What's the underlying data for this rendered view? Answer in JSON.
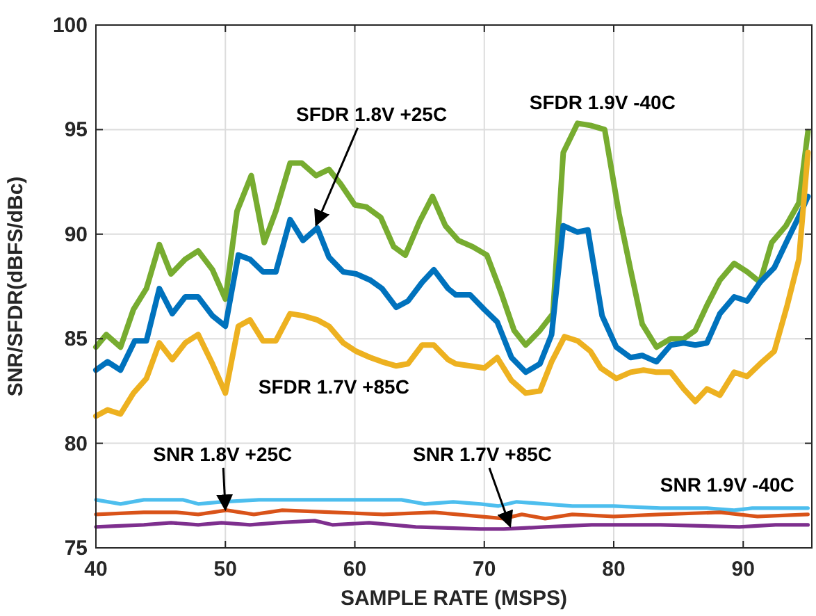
{
  "chart_data": {
    "type": "line",
    "xlabel": "SAMPLE RATE (MSPS)",
    "ylabel": "SNR/SFDR(dBFS/dBc)",
    "xlim": [
      40,
      95.3
    ],
    "ylim": [
      75,
      100
    ],
    "xticks": [
      40,
      50,
      60,
      70,
      80,
      90
    ],
    "yticks": [
      75,
      80,
      85,
      90,
      95,
      100
    ],
    "grid": true,
    "marker": "none",
    "line_style": "solid",
    "series": [
      {
        "color": "#77ac30",
        "x": [
          40,
          40.8,
          41.9,
          42.9,
          43.9,
          44.9,
          45.8,
          46.9,
          47.9,
          49,
          50,
          50.9,
          52,
          53,
          53.9,
          55,
          55.9,
          57,
          58,
          58.9,
          60,
          60.9,
          62,
          63,
          63.9,
          65,
          66,
          67,
          68,
          69.1,
          70.2,
          71.3,
          72.3,
          73.2,
          74.3,
          75.3,
          76.1,
          77.2,
          78.2,
          79.3,
          80.4,
          81.3,
          82.2,
          83.3,
          84.4,
          85.4,
          86.3,
          87.2,
          88.2,
          89.3,
          90.3,
          91.3,
          92.2,
          93.3,
          94.3,
          95
        ],
        "values": [
          84.6,
          85.2,
          84.6,
          86.4,
          87.4,
          89.5,
          88.1,
          88.8,
          89.2,
          88.3,
          86.9,
          91.1,
          92.8,
          89.6,
          91.1,
          93.4,
          93.4,
          92.8,
          93.1,
          92.4,
          91.4,
          91.3,
          90.8,
          89.4,
          89,
          90.6,
          91.8,
          90.4,
          89.7,
          89.4,
          89,
          87.2,
          85.4,
          84.7,
          85.4,
          86.2,
          93.9,
          95.3,
          95.2,
          95,
          91,
          88.3,
          85.7,
          84.6,
          85,
          85,
          85.4,
          86.6,
          87.8,
          88.6,
          88.2,
          87.7,
          89.6,
          90.4,
          91.5,
          94.9
        ]
      },
      {
        "color": "#0072bd",
        "x": [
          40,
          40.9,
          41.9,
          43,
          43.9,
          44.9,
          45.9,
          46.9,
          47.9,
          49,
          50,
          51,
          51.9,
          52.9,
          53.9,
          55,
          56,
          57.1,
          58,
          59.1,
          60.1,
          61.2,
          62.1,
          63.2,
          64.1,
          65.2,
          66.1,
          67.2,
          67.8,
          68.9,
          70,
          71,
          72.1,
          73.2,
          74.3,
          75.2,
          76.1,
          77.2,
          78,
          79.1,
          80.2,
          81.3,
          82.2,
          83.3,
          84.4,
          85.4,
          86.3,
          87.2,
          88.2,
          89.3,
          90.3,
          91.3,
          92.4,
          93.4,
          94.5,
          95
        ],
        "values": [
          83.5,
          83.9,
          83.5,
          84.9,
          84.9,
          87.4,
          86.2,
          87,
          87,
          86.1,
          85.6,
          89,
          88.8,
          88.2,
          88.2,
          90.7,
          89.7,
          90.3,
          88.9,
          88.2,
          88.1,
          87.8,
          87.4,
          86.5,
          86.8,
          87.7,
          88.3,
          87.4,
          87.1,
          87.1,
          86.4,
          85.8,
          84.1,
          83.4,
          83.8,
          85.2,
          90.4,
          90.1,
          90.2,
          86.1,
          84.6,
          84.1,
          84.2,
          83.9,
          84.7,
          84.8,
          84.7,
          84.8,
          86.2,
          87,
          86.8,
          87.7,
          88.4,
          89.7,
          91.1,
          91.8
        ]
      },
      {
        "color": "#edb120",
        "x": [
          40,
          40.9,
          41.9,
          42.9,
          43.9,
          44.9,
          45.9,
          46.9,
          47.9,
          49,
          50,
          51,
          51.9,
          52.9,
          53.9,
          55,
          56,
          57.1,
          58,
          59.1,
          60.1,
          61.2,
          62.1,
          63.2,
          64.1,
          65.2,
          66.1,
          67.2,
          67.8,
          68.9,
          70,
          71,
          72.1,
          73.2,
          74.3,
          75.2,
          76.2,
          77.2,
          78.2,
          79,
          80.2,
          81.3,
          82.3,
          83.3,
          84.4,
          85.4,
          86.3,
          87.2,
          88.2,
          89.3,
          90.3,
          91.3,
          92.4,
          93.4,
          94.3,
          95
        ],
        "values": [
          81.3,
          81.6,
          81.4,
          82.4,
          83.1,
          84.8,
          84,
          84.8,
          85.2,
          83.8,
          82.4,
          85.6,
          85.9,
          84.9,
          84.9,
          86.2,
          86.1,
          85.9,
          85.6,
          84.8,
          84.4,
          84.1,
          83.9,
          83.7,
          83.8,
          84.7,
          84.7,
          84,
          83.8,
          83.7,
          83.6,
          84.1,
          83,
          82.4,
          82.5,
          83.9,
          85.1,
          84.9,
          84.4,
          83.6,
          83.1,
          83.4,
          83.5,
          83.4,
          83.4,
          82.6,
          82,
          82.6,
          82.3,
          83.4,
          83.2,
          83.8,
          84.4,
          86.6,
          88.8,
          93.9
        ]
      },
      {
        "color": "#4dbeee",
        "x": [
          40,
          41.9,
          43.7,
          46.7,
          47.9,
          49.7,
          52.6,
          56.9,
          60.8,
          63.6,
          65.4,
          67.6,
          69.7,
          71.1,
          72.5,
          74.7,
          76.8,
          80,
          83.6,
          87.2,
          89.3,
          90.7,
          95
        ],
        "values": [
          77.3,
          77.1,
          77.3,
          77.3,
          77.1,
          77.2,
          77.3,
          77.3,
          77.3,
          77.3,
          77.1,
          77.2,
          77.1,
          77,
          77.2,
          77.1,
          77,
          77,
          76.9,
          76.9,
          76.8,
          76.9,
          76.9
        ]
      },
      {
        "color": "#d95319",
        "x": [
          40,
          43.7,
          46.2,
          47.9,
          50.1,
          52.2,
          54.4,
          58.3,
          62.2,
          66.1,
          69.7,
          71.5,
          72.9,
          74.7,
          76.8,
          80,
          83.6,
          88.2,
          91.1,
          95
        ],
        "values": [
          76.6,
          76.7,
          76.7,
          76.6,
          76.8,
          76.6,
          76.8,
          76.7,
          76.6,
          76.7,
          76.5,
          76.4,
          76.6,
          76.4,
          76.6,
          76.5,
          76.6,
          76.7,
          76.5,
          76.6
        ]
      },
      {
        "color": "#7e2f8e",
        "x": [
          40,
          43.7,
          45.8,
          47.9,
          49.7,
          51.9,
          54,
          56.9,
          58.3,
          61.1,
          64.7,
          69.7,
          71.5,
          74.7,
          78.3,
          83.6,
          89.7,
          92.5,
          95
        ],
        "values": [
          76,
          76.1,
          76.2,
          76.1,
          76.2,
          76.1,
          76.2,
          76.3,
          76.1,
          76.2,
          76,
          75.9,
          75.9,
          76,
          76.1,
          76.1,
          76,
          76.1,
          76.1
        ]
      }
    ],
    "annotations": [
      {
        "text": "SFDR 1.8V +25C",
        "x": 57,
        "y": 90.3
      },
      {
        "text": "SFDR 1.9V -40C",
        "x": 77.2,
        "y": 95.3
      },
      {
        "text": "SFDR 1.7V +85C",
        "x": 63,
        "y": 83.7
      },
      {
        "text": "SNR 1.8V +25C",
        "x": 50,
        "y": 76.7
      },
      {
        "text": "SNR 1.7V +85C",
        "x": 72,
        "y": 75.9
      },
      {
        "text": "SNR 1.9V -40C",
        "x": 90.7,
        "y": 76.9
      }
    ]
  }
}
